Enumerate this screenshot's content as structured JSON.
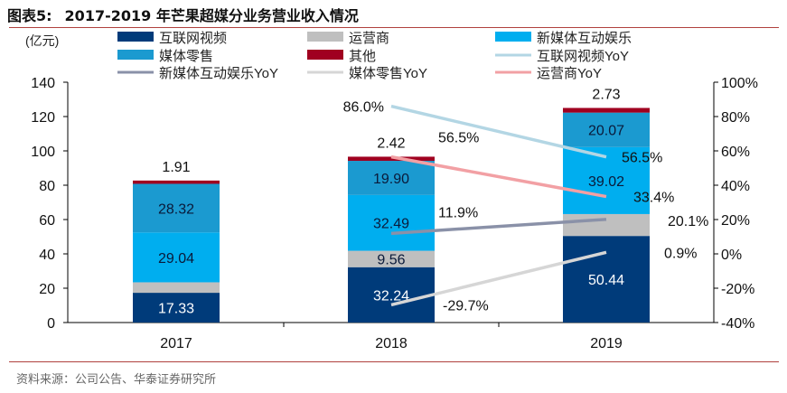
{
  "header": {
    "figure_label": "图表5:",
    "title": "2017-2019 年芒果超媒分业务营业收入情况"
  },
  "source": "资料来源：公司公告、华泰证券研究所",
  "chart_data": {
    "type": "bar",
    "stacked": true,
    "ylabel": "(亿元)",
    "categories": [
      "2017",
      "2018",
      "2019"
    ],
    "ylim": [
      0,
      140
    ],
    "yticks": [
      0,
      20,
      40,
      60,
      80,
      100,
      120,
      140
    ],
    "y2lim": [
      -40,
      100
    ],
    "y2ticks": [
      "-40%",
      "-20%",
      "0%",
      "20%",
      "40%",
      "60%",
      "80%",
      "100%"
    ],
    "legend_position": "top",
    "series": [
      {
        "name": "互联网视频",
        "color": "#003B7A",
        "values": [
          17.33,
          32.24,
          50.44
        ],
        "labels": [
          "17.33",
          "32.24",
          "50.44"
        ]
      },
      {
        "name": "运营商",
        "color": "#BFBFBF",
        "values": [
          6.11,
          9.56,
          12.75
        ],
        "labels": [
          "6.11",
          "9.56",
          "12.75"
        ]
      },
      {
        "name": "新媒体互动娱乐",
        "color": "#00AEEF",
        "values": [
          29.04,
          32.49,
          39.02
        ],
        "labels": [
          "29.04",
          "32.49",
          "39.02"
        ]
      },
      {
        "name": "媒体零售",
        "color": "#1B9AD0",
        "values": [
          28.32,
          19.9,
          20.07
        ],
        "labels": [
          "28.32",
          "19.90",
          "20.07"
        ]
      },
      {
        "name": "其他",
        "color": "#A00020",
        "values": [
          1.91,
          2.42,
          2.73
        ],
        "labels": [
          "1.91",
          "2.42",
          "2.73"
        ]
      }
    ],
    "line_series": [
      {
        "name": "互联网视频YoY",
        "color": "#B3D6E4",
        "categories": [
          "2018",
          "2019"
        ],
        "values": [
          86.0,
          56.5
        ],
        "labels": [
          "86.0%",
          "56.5%"
        ]
      },
      {
        "name": "新媒体互动娱乐YoY",
        "color": "#8A91A8",
        "categories": [
          "2018",
          "2019"
        ],
        "values": [
          11.9,
          20.1
        ],
        "labels": [
          "11.9%",
          "20.1%"
        ]
      },
      {
        "name": "媒体零售YoY",
        "color": "#D6D6D6",
        "categories": [
          "2018",
          "2019"
        ],
        "values": [
          -29.7,
          0.9
        ],
        "labels": [
          "-29.7%",
          "0.9%"
        ]
      },
      {
        "name": "运营商YoY",
        "color": "#F2A0A4",
        "categories": [
          "2018",
          "2019"
        ],
        "values": [
          56.5,
          33.4
        ],
        "labels": [
          "56.5%",
          "33.4%"
        ]
      }
    ]
  }
}
